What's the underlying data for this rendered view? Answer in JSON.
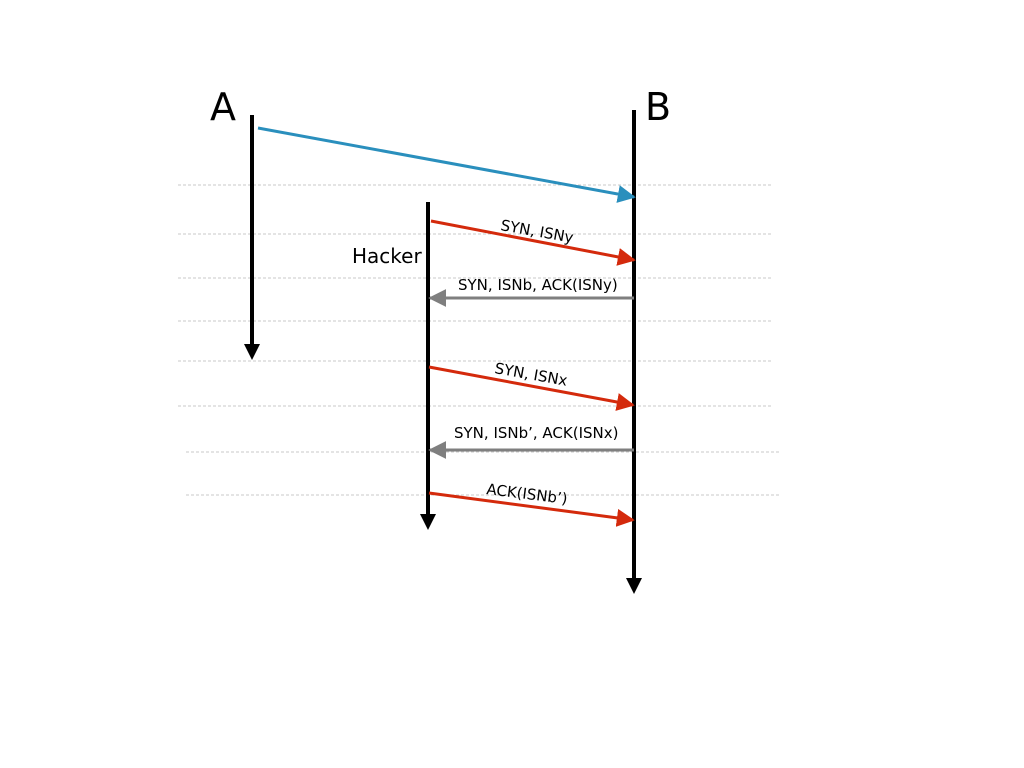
{
  "participants": {
    "a": "A",
    "b": "B",
    "hacker": "Hacker"
  },
  "colors": {
    "initial": "#2a8fbd",
    "hacker_to_b": "#d42a0c",
    "b_to_hacker": "#7f7f7f",
    "timeline": "#000000",
    "grid": "#c8c8c8"
  },
  "messages": [
    {
      "from": "A",
      "to": "B",
      "label": "",
      "color_key": "initial"
    },
    {
      "from": "Hacker",
      "to": "B",
      "label": "SYN, ISNy",
      "color_key": "hacker_to_b"
    },
    {
      "from": "B",
      "to": "Hacker",
      "label": "SYN, ISNb, ACK(ISNy)",
      "color_key": "b_to_hacker"
    },
    {
      "from": "Hacker",
      "to": "B",
      "label": "SYN, ISNx",
      "color_key": "hacker_to_b"
    },
    {
      "from": "B",
      "to": "Hacker",
      "label": "SYN, ISNb’, ACK(ISNx)",
      "color_key": "b_to_hacker"
    },
    {
      "from": "Hacker",
      "to": "B",
      "label": "ACK(ISNb’)",
      "color_key": "hacker_to_b"
    }
  ]
}
